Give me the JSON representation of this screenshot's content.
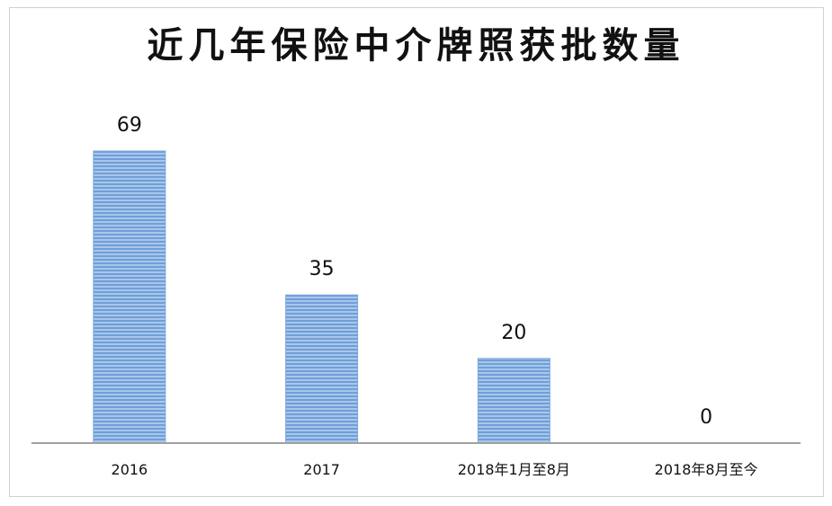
{
  "chart_data": {
    "type": "bar",
    "title": "近几年保险中介牌照获批数量",
    "categories": [
      "2016",
      "2017",
      "2018年1月至8月",
      "2018年8月至今"
    ],
    "values": [
      69,
      35,
      20,
      0
    ],
    "xlabel": "",
    "ylabel": "",
    "ylim": [
      0,
      69
    ],
    "grid": false,
    "legend": "none",
    "bar_color": "#8db4e2",
    "bar_stripe_color": "#5b8fd0",
    "axis_color": "#a0a0a0"
  }
}
